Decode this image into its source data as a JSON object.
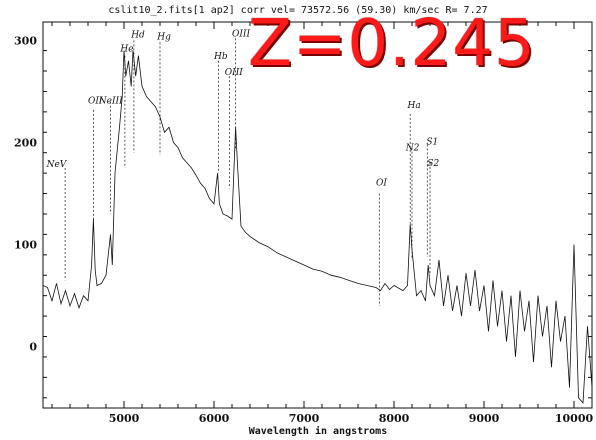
{
  "chart_data": {
    "type": "line",
    "title": "cslit10_2.fits[1 ap2]  corr vel= 73572.56 (59.30) km/sec R= 7.27",
    "xlabel": "Wavelength in angstroms",
    "ylabel": "",
    "xlim": [
      4100,
      10200
    ],
    "ylim": [
      -60,
      318
    ],
    "xticks": [
      5000,
      6000,
      7000,
      8000,
      9000,
      10000
    ],
    "yticks": [
      0,
      100,
      200,
      300
    ],
    "series": [
      {
        "points": [
          [
            4100,
            60
          ],
          [
            4150,
            58
          ],
          [
            4200,
            45
          ],
          [
            4250,
            62
          ],
          [
            4300,
            42
          ],
          [
            4350,
            55
          ],
          [
            4400,
            40
          ],
          [
            4450,
            52
          ],
          [
            4500,
            38
          ],
          [
            4550,
            50
          ],
          [
            4600,
            45
          ],
          [
            4640,
            80
          ],
          [
            4660,
            125
          ],
          [
            4680,
            75
          ],
          [
            4700,
            60
          ],
          [
            4750,
            62
          ],
          [
            4800,
            70
          ],
          [
            4850,
            110
          ],
          [
            4870,
            80
          ],
          [
            4900,
            170
          ],
          [
            4950,
            215
          ],
          [
            4980,
            245
          ],
          [
            5000,
            290
          ],
          [
            5020,
            265
          ],
          [
            5050,
            280
          ],
          [
            5080,
            255
          ],
          [
            5100,
            290
          ],
          [
            5130,
            265
          ],
          [
            5160,
            285
          ],
          [
            5200,
            255
          ],
          [
            5250,
            245
          ],
          [
            5300,
            240
          ],
          [
            5350,
            235
          ],
          [
            5400,
            225
          ],
          [
            5450,
            210
          ],
          [
            5500,
            215
          ],
          [
            5550,
            200
          ],
          [
            5600,
            195
          ],
          [
            5650,
            185
          ],
          [
            5700,
            180
          ],
          [
            5750,
            175
          ],
          [
            5800,
            168
          ],
          [
            5850,
            160
          ],
          [
            5900,
            155
          ],
          [
            5950,
            145
          ],
          [
            6000,
            140
          ],
          [
            6040,
            170
          ],
          [
            6060,
            140
          ],
          [
            6100,
            130
          ],
          [
            6150,
            128
          ],
          [
            6200,
            125
          ],
          [
            6240,
            215
          ],
          [
            6260,
            180
          ],
          [
            6300,
            118
          ],
          [
            6350,
            112
          ],
          [
            6400,
            108
          ],
          [
            6500,
            102
          ],
          [
            6600,
            98
          ],
          [
            6700,
            92
          ],
          [
            6800,
            88
          ],
          [
            6900,
            84
          ],
          [
            7000,
            80
          ],
          [
            7100,
            76
          ],
          [
            7200,
            74
          ],
          [
            7300,
            70
          ],
          [
            7400,
            68
          ],
          [
            7500,
            65
          ],
          [
            7600,
            62
          ],
          [
            7700,
            60
          ],
          [
            7800,
            58
          ],
          [
            7850,
            55
          ],
          [
            7900,
            62
          ],
          [
            7950,
            56
          ],
          [
            8000,
            60
          ],
          [
            8100,
            55
          ],
          [
            8150,
            60
          ],
          [
            8180,
            120
          ],
          [
            8200,
            95
          ],
          [
            8250,
            50
          ],
          [
            8300,
            55
          ],
          [
            8350,
            45
          ],
          [
            8380,
            80
          ],
          [
            8400,
            60
          ],
          [
            8450,
            50
          ],
          [
            8500,
            85
          ],
          [
            8550,
            40
          ],
          [
            8600,
            70
          ],
          [
            8650,
            35
          ],
          [
            8700,
            60
          ],
          [
            8750,
            30
          ],
          [
            8800,
            72
          ],
          [
            8850,
            40
          ],
          [
            8900,
            75
          ],
          [
            8950,
            35
          ],
          [
            9000,
            60
          ],
          [
            9050,
            15
          ],
          [
            9100,
            65
          ],
          [
            9150,
            20
          ],
          [
            9200,
            55
          ],
          [
            9250,
            5
          ],
          [
            9300,
            50
          ],
          [
            9350,
            -10
          ],
          [
            9400,
            55
          ],
          [
            9450,
            15
          ],
          [
            9500,
            45
          ],
          [
            9550,
            -15
          ],
          [
            9600,
            50
          ],
          [
            9650,
            10
          ],
          [
            9700,
            40
          ],
          [
            9750,
            -20
          ],
          [
            9800,
            45
          ],
          [
            9850,
            5
          ],
          [
            9900,
            30
          ],
          [
            9950,
            -40
          ],
          [
            10000,
            100
          ],
          [
            10050,
            -50
          ],
          [
            10100,
            -55
          ],
          [
            10150,
            20
          ],
          [
            10200,
            -40
          ]
        ]
      }
    ],
    "lines": [
      {
        "label": "NeV",
        "x": 4346,
        "top": 175,
        "lx": 4140,
        "ly": 176
      },
      {
        "label": "OII",
        "x": 4660,
        "top": 232,
        "lx": 4600,
        "ly": 238
      },
      {
        "label": "NeIII",
        "x": 4850,
        "top": 240,
        "lx": 4720,
        "ly": 238
      },
      {
        "label": "He",
        "x": 5010,
        "top": 285,
        "lx": 4960,
        "ly": 289
      },
      {
        "label": "Hd",
        "x": 5110,
        "top": 300,
        "lx": 5080,
        "ly": 303
      },
      {
        "label": "Hg",
        "x": 5400,
        "top": 298,
        "lx": 5370,
        "ly": 301
      },
      {
        "label": "Hb",
        "x": 6050,
        "top": 280,
        "lx": 6000,
        "ly": 282
      },
      {
        "label": "OIII",
        "x": 6170,
        "top": 265,
        "lx": 6120,
        "ly": 266
      },
      {
        "label": "OIII",
        "x": 6240,
        "top": 302,
        "lx": 6200,
        "ly": 304
      },
      {
        "label": "OI",
        "x": 7840,
        "top": 150,
        "lx": 7800,
        "ly": 158
      },
      {
        "label": "Ha",
        "x": 8180,
        "top": 228,
        "lx": 8150,
        "ly": 234
      },
      {
        "label": "N2",
        "x": 8200,
        "top": 195,
        "lx": 8130,
        "ly": 192
      },
      {
        "label": "S1",
        "x": 8370,
        "top": 198,
        "lx": 8360,
        "ly": 198
      },
      {
        "label": "S2",
        "x": 8400,
        "top": 180,
        "lx": 8370,
        "ly": 177
      }
    ]
  },
  "overlay": {
    "redshift_label": "Z=0.245"
  }
}
